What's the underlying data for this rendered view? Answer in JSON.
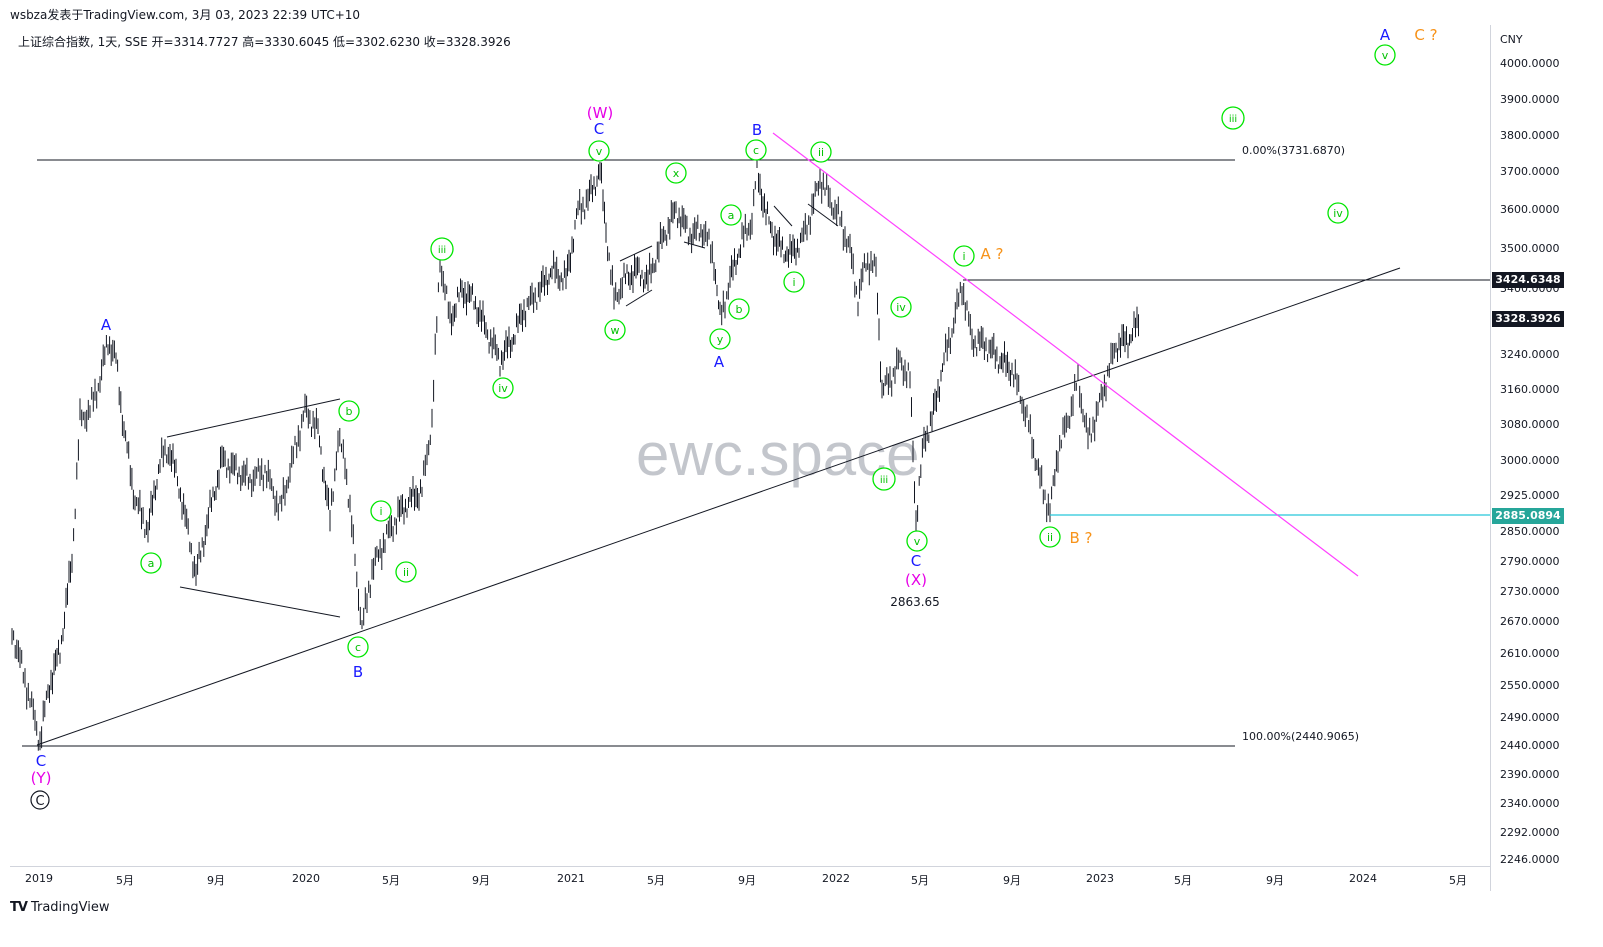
{
  "header": {
    "publisher_line": "wsbza发表于TradingView.com,  3月 03, 2023 22:39 UTC+10",
    "symbol_line": "上证综合指数, 1天, SSE  开=3314.7727  高=3330.6045  低=3302.6230  收=3328.3926"
  },
  "price_axis": {
    "unit": "CNY",
    "ticks": [
      "4000.0000",
      "3900.0000",
      "3800.0000",
      "3700.0000",
      "3600.0000",
      "3500.0000",
      "3400.0000",
      "3240.0000",
      "3160.0000",
      "3080.0000",
      "3000.0000",
      "2925.0000",
      "2850.0000",
      "2790.0000",
      "2730.0000",
      "2670.0000",
      "2610.0000",
      "2550.0000",
      "2490.0000",
      "2440.0000",
      "2390.0000",
      "2340.0000",
      "2292.0000",
      "2246.0000"
    ],
    "tags": [
      {
        "value": "3424.6348",
        "color": "#131722"
      },
      {
        "value": "3328.3926",
        "color": "#131722"
      },
      {
        "value": "2885.0894",
        "color": "#26a69a"
      }
    ]
  },
  "time_axis": {
    "ticks": [
      "2019",
      "5月",
      "9月",
      "2020",
      "5月",
      "9月",
      "2021",
      "5月",
      "9月",
      "2022",
      "5月",
      "9月",
      "2023",
      "5月",
      "9月",
      "2024",
      "5月"
    ]
  },
  "fib_labels": {
    "top": "0.00%(3731.6870)",
    "bottom": "100.00%(2440.9065)"
  },
  "annotations": {
    "low_value": "2863.65",
    "wave_labels": {
      "w_paren": "(W)",
      "x_paren": "(X)",
      "y_paren": "(Y)",
      "big_c": "C",
      "a_q": "A ?",
      "b_q": "B ?",
      "c_q": "C ?",
      "A": "A",
      "B": "B",
      "C": "C"
    },
    "circle_labels": {
      "i": "i",
      "ii": "ii",
      "iii": "iii",
      "iv": "iv",
      "v": "v",
      "a": "a",
      "b": "b",
      "c": "c",
      "w": "w",
      "x": "x",
      "y": "y"
    }
  },
  "watermark": "ewc.space",
  "footer": {
    "brand": "TradingView",
    "logo": "TV"
  },
  "colors": {
    "wave_green": "#00e600",
    "wave_blue": "#1a1aff",
    "wave_magenta": "#e600e6",
    "wave_orange": "#f7931a",
    "trend_magenta": "#ff40ff",
    "support_teal": "#26c6da"
  }
}
